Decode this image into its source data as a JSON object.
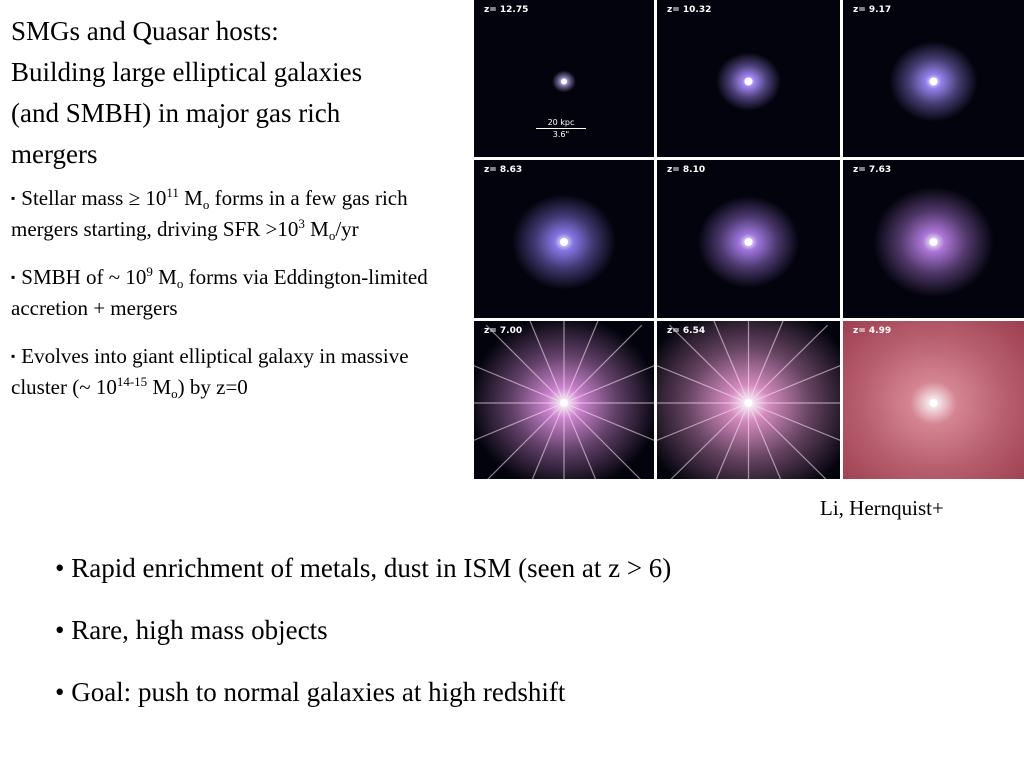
{
  "slide": {
    "title_lines": [
      "SMGs and Quasar hosts:",
      "Building large elliptical galaxies",
      "(and SMBH) in major gas rich",
      "mergers"
    ],
    "bullets": [
      {
        "marker": "▪",
        "p1": "Stellar mass ≥ 10",
        "sup1": "11",
        "p2": " M",
        "sub1": "o",
        "p3": " forms in a few gas rich mergers starting, driving SFR >10",
        "sup2": "3",
        "p4": " M",
        "sub2": "o",
        "p5": "/yr"
      },
      {
        "marker": "▪",
        "p1": "SMBH  of ~ 10",
        "sup1": "9",
        "p2": " M",
        "sub1": "o",
        "p3": " forms via Eddington-limited accretion + mergers"
      },
      {
        "marker": "▪",
        "p1": "Evolves into giant elliptical galaxy in massive cluster (~ 10",
        "sup1": "14-15",
        "p2": " M",
        "sub1": "o",
        "p3": ") by z=0"
      }
    ],
    "credit": "Li, Hernquist+",
    "lower_bullets": [
      "• Rapid enrichment of metals, dust  in ISM (seen at z > 6)",
      "• Rare, high mass objects",
      "• Goal:  push to normal galaxies at high redshift"
    ]
  },
  "figure": {
    "panels": [
      {
        "z": "z= 12.75",
        "color": "#c6b6ff",
        "stage": 0
      },
      {
        "z": "z= 10.32",
        "color": "#a98dff",
        "stage": 1
      },
      {
        "z": "z=  9.17",
        "color": "#9b87f5",
        "stage": 1
      },
      {
        "z": "z=  8.63",
        "color": "#8d7cf0",
        "stage": 1
      },
      {
        "z": "z=  8.10",
        "color": "#a77ce8",
        "stage": 2
      },
      {
        "z": "z=  7.63",
        "color": "#b47be0",
        "stage": 2
      },
      {
        "z": "z=  7.00",
        "color": "#d58ad8",
        "stage": 3
      },
      {
        "z": "z=  6.54",
        "color": "#df92c9",
        "stage": 3
      },
      {
        "z": "z=  4.99",
        "color": "#d88896",
        "stage": 4
      }
    ],
    "scale_top": "20 kpc",
    "scale_bottom": "3.6\""
  }
}
